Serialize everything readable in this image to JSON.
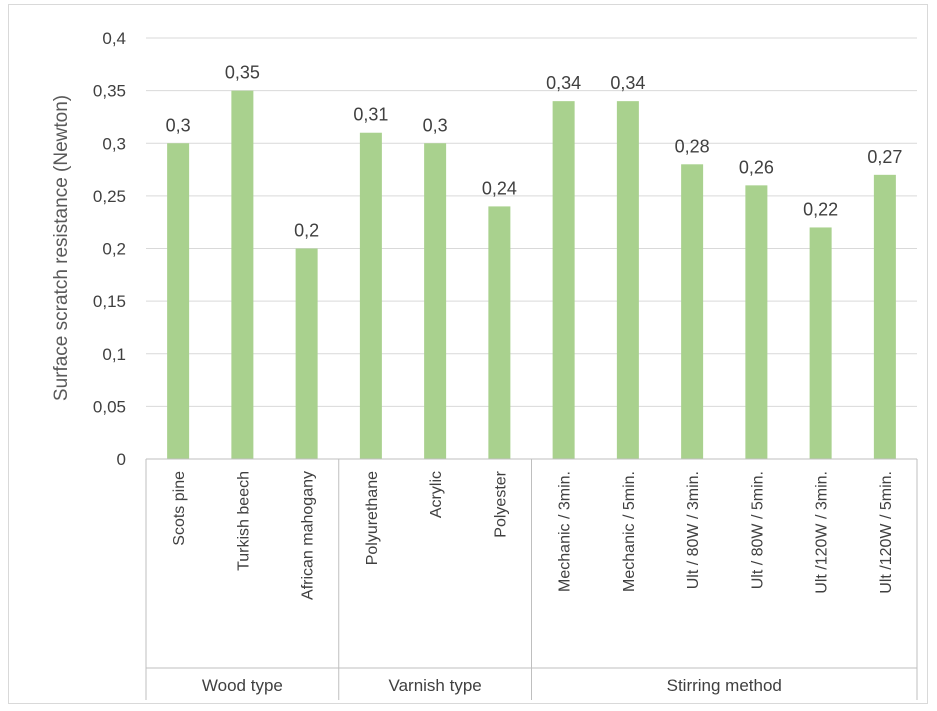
{
  "chart_data": {
    "type": "bar",
    "title": "",
    "xlabel": "",
    "ylabel": "Surface scratch resistance (Newton)",
    "ylim": [
      0,
      0.4
    ],
    "y_ticks": [
      "0",
      "0,05",
      "0,1",
      "0,15",
      "0,2",
      "0,25",
      "0,3",
      "0,35",
      "0,4"
    ],
    "grid": true,
    "legend": "none",
    "bar_color": "#a9d18e",
    "groups": [
      {
        "label": "Wood type",
        "categories": [
          "Scots pine",
          "Turkish beech",
          "African mahogany"
        ],
        "values": [
          0.3,
          0.35,
          0.2
        ],
        "value_labels": [
          "0,3",
          "0,35",
          "0,2"
        ]
      },
      {
        "label": "Varnish type",
        "categories": [
          "Polyurethane",
          "Acrylic",
          "Polyester"
        ],
        "values": [
          0.31,
          0.3,
          0.24
        ],
        "value_labels": [
          "0,31",
          "0,3",
          "0,24"
        ]
      },
      {
        "label": "Stirring method",
        "categories": [
          "Mechanic / 3min.",
          "Mechanic / 5min.",
          "Ult / 80W / 3min.",
          "Ult / 80W / 5min.",
          "Ult /120W / 3min.",
          "Ult /120W / 5min."
        ],
        "values": [
          0.34,
          0.34,
          0.28,
          0.26,
          0.22,
          0.27
        ],
        "value_labels": [
          "0,34",
          "0,34",
          "0,28",
          "0,26",
          "0,22",
          "0,27"
        ]
      }
    ]
  }
}
